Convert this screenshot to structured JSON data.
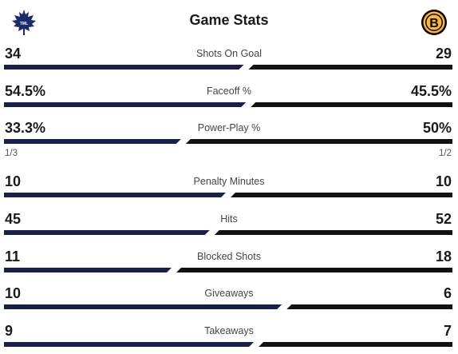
{
  "header": {
    "title": "Game Stats",
    "away_logo": "maple-leaf-icon",
    "home_logo": "bruins-b-icon"
  },
  "colors": {
    "away": "#1b1f4b",
    "home": "#111111",
    "text": "#1a1a1a",
    "label": "#444444"
  },
  "stats": [
    {
      "label": "Shots On Goal",
      "away": "34",
      "home": "29",
      "away_share": 0.54
    },
    {
      "label": "Faceoff %",
      "away": "54.5%",
      "home": "45.5%",
      "away_share": 0.545
    },
    {
      "label": "Power-Play %",
      "away": "33.3%",
      "home": "50%",
      "away_share": 0.4,
      "away_sub": "1/3",
      "home_sub": "1/2"
    },
    {
      "label": "Penalty Minutes",
      "away": "10",
      "home": "10",
      "away_share": 0.5
    },
    {
      "label": "Hits",
      "away": "45",
      "home": "52",
      "away_share": 0.464
    },
    {
      "label": "Blocked Shots",
      "away": "11",
      "home": "18",
      "away_share": 0.379
    },
    {
      "label": "Giveaways",
      "away": "10",
      "home": "6",
      "away_share": 0.625
    },
    {
      "label": "Takeaways",
      "away": "9",
      "home": "7",
      "away_share": 0.5625
    }
  ]
}
